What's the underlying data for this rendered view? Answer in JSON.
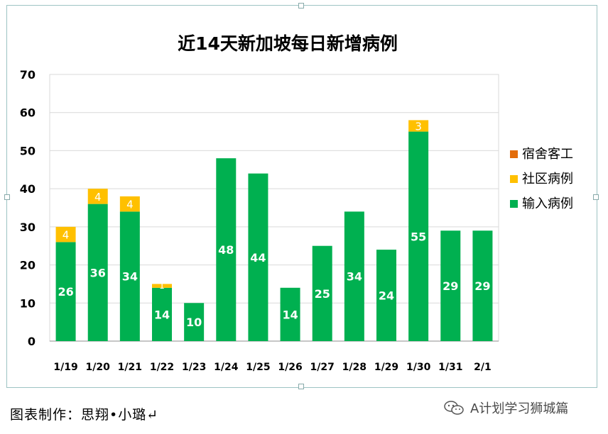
{
  "chart_data": {
    "type": "bar",
    "stacked": true,
    "title": "近14天新加坡每日新增病例",
    "categories": [
      "1/19",
      "1/20",
      "1/21",
      "1/22",
      "1/23",
      "1/24",
      "1/25",
      "1/26",
      "1/27",
      "1/28",
      "1/29",
      "1/30",
      "1/31",
      "2/1"
    ],
    "series": [
      {
        "name": "输入病例",
        "color": "#00b050",
        "values": [
          26,
          36,
          34,
          14,
          10,
          48,
          44,
          14,
          25,
          34,
          24,
          55,
          29,
          29
        ]
      },
      {
        "name": "社区病例",
        "color": "#ffc000",
        "values": [
          4,
          4,
          4,
          1,
          0,
          0,
          0,
          0,
          0,
          0,
          0,
          3,
          0,
          0
        ]
      },
      {
        "name": "宿舍客工",
        "color": "#e36c09",
        "values": [
          0,
          0,
          0,
          0,
          0,
          0,
          0,
          0,
          0,
          0,
          0,
          0,
          0,
          0
        ]
      }
    ],
    "legend_order": [
      "宿舍客工",
      "社区病例",
      "输入病例"
    ],
    "ylim": [
      0,
      70
    ],
    "yticks": [
      0,
      10,
      20,
      30,
      40,
      50,
      60,
      70
    ],
    "grid": true,
    "legend_position": "right"
  },
  "footer": {
    "credit": "图表制作：思翔•小璐↵",
    "watermark": "A计划学习狮城篇",
    "watermark_icon": "wechat-icon"
  }
}
